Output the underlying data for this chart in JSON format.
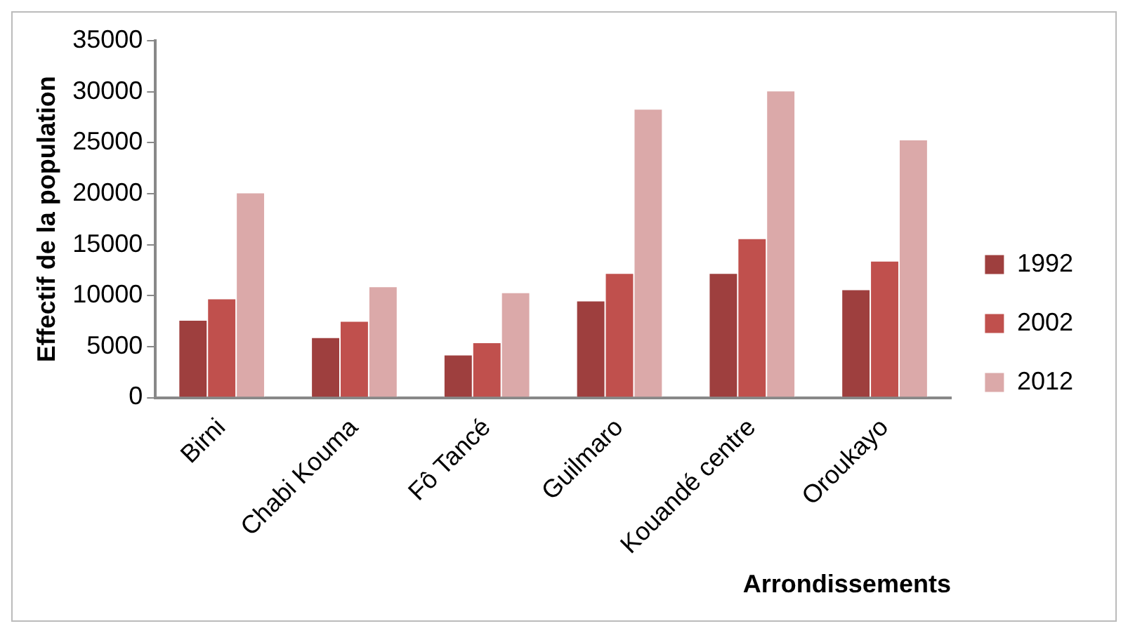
{
  "chart_data": {
    "type": "bar",
    "xlabel": "Arrondissements",
    "ylabel": "Effectif de la population",
    "categories": [
      "Birni",
      "Chabi Kouma",
      "Fô Tancé",
      "Guilmaro",
      "Kouandé centre",
      "Oroukayo"
    ],
    "series": [
      {
        "name": "1992",
        "color": "#9e3f3e",
        "values": [
          7600,
          5900,
          4200,
          9500,
          12200,
          10600
        ]
      },
      {
        "name": "2002",
        "color": "#c0504d",
        "values": [
          9700,
          7500,
          5400,
          12200,
          15600,
          13400
        ]
      },
      {
        "name": "2012",
        "color": "#dba9a9",
        "values": [
          20100,
          10900,
          10300,
          28300,
          30100,
          25300
        ]
      }
    ],
    "ylim": [
      0,
      35000
    ],
    "yticks": [
      0,
      5000,
      10000,
      15000,
      20000,
      25000,
      30000,
      35000
    ],
    "grid": false,
    "legend": "right"
  }
}
